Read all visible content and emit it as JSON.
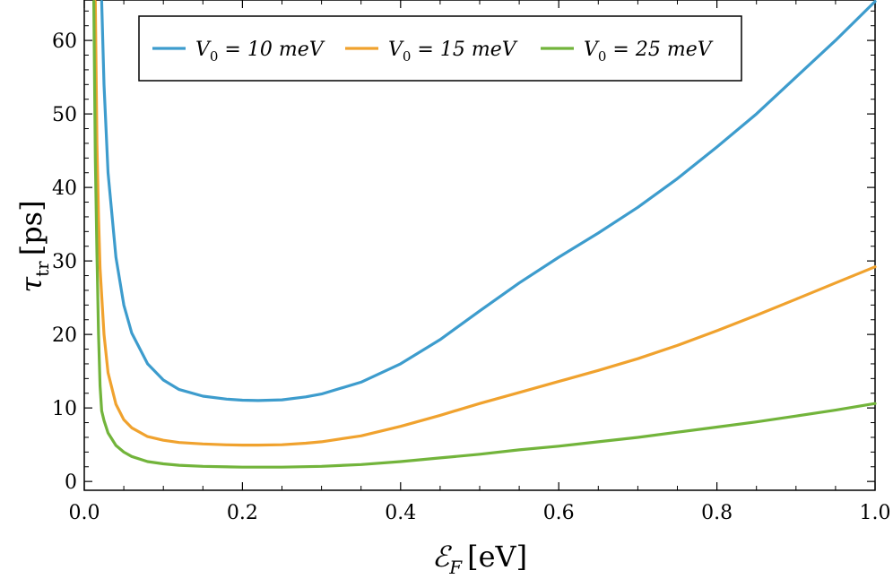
{
  "chart_data": {
    "type": "line",
    "xlabel": {
      "main": "ℰ",
      "sub": "F",
      "unit": "[eV]"
    },
    "ylabel": {
      "main": "τ",
      "sub": "tr",
      "unit": "[ps]"
    },
    "xlim": [
      0.0,
      1.0
    ],
    "ylim": [
      -1.2,
      65.5
    ],
    "xticks": [
      0.0,
      0.2,
      0.4,
      0.6,
      0.8,
      1.0
    ],
    "xtick_labels": [
      "0.0",
      "0.2",
      "0.4",
      "0.6",
      "0.8",
      "1.0"
    ],
    "yticks": [
      0,
      10,
      20,
      30,
      40,
      50,
      60
    ],
    "ytick_labels": [
      "0",
      "10",
      "20",
      "30",
      "40",
      "50",
      "60"
    ],
    "grid": false,
    "legend_position": "top-center",
    "series": [
      {
        "name": "V0 = 10 meV",
        "label_main": "V",
        "label_sub": "0",
        "label_rest": " = 10 meV",
        "color": "#3d9ccd",
        "x": [
          0.022,
          0.025,
          0.03,
          0.04,
          0.05,
          0.06,
          0.08,
          0.1,
          0.12,
          0.15,
          0.18,
          0.2,
          0.22,
          0.25,
          0.28,
          0.3,
          0.35,
          0.4,
          0.45,
          0.5,
          0.55,
          0.6,
          0.65,
          0.7,
          0.75,
          0.8,
          0.85,
          0.9,
          0.95,
          1.0
        ],
        "y": [
          65.3,
          54.0,
          42.0,
          30.5,
          24.0,
          20.2,
          16.0,
          13.8,
          12.5,
          11.6,
          11.2,
          11.05,
          11.0,
          11.1,
          11.5,
          11.9,
          13.5,
          16.0,
          19.3,
          23.2,
          27.0,
          30.5,
          33.8,
          37.3,
          41.2,
          45.5,
          50.0,
          55.0,
          60.0,
          65.3
        ]
      },
      {
        "name": "V0 = 15 meV",
        "label_main": "V",
        "label_sub": "0",
        "label_rest": " = 15 meV",
        "color": "#f0a22e",
        "x": [
          0.014,
          0.016,
          0.018,
          0.02,
          0.025,
          0.03,
          0.04,
          0.05,
          0.06,
          0.08,
          0.1,
          0.12,
          0.15,
          0.18,
          0.2,
          0.22,
          0.25,
          0.28,
          0.3,
          0.35,
          0.4,
          0.45,
          0.5,
          0.55,
          0.6,
          0.65,
          0.7,
          0.75,
          0.8,
          0.85,
          0.9,
          0.95,
          1.0
        ],
        "y": [
          65.3,
          46.0,
          36.0,
          29.0,
          20.0,
          14.8,
          10.5,
          8.4,
          7.3,
          6.1,
          5.6,
          5.3,
          5.1,
          4.98,
          4.95,
          4.95,
          5.0,
          5.2,
          5.4,
          6.2,
          7.5,
          9.0,
          10.6,
          12.1,
          13.6,
          15.1,
          16.7,
          18.5,
          20.5,
          22.6,
          24.8,
          27.0,
          29.2
        ]
      },
      {
        "name": "V0 = 25 meV",
        "label_main": "V",
        "label_sub": "0",
        "label_rest": " = 25 meV",
        "color": "#72b43b",
        "x": [
          0.012,
          0.014,
          0.016,
          0.018,
          0.02,
          0.022,
          0.025,
          0.03,
          0.04,
          0.05,
          0.06,
          0.08,
          0.1,
          0.12,
          0.15,
          0.2,
          0.25,
          0.3,
          0.35,
          0.4,
          0.45,
          0.5,
          0.55,
          0.6,
          0.65,
          0.7,
          0.75,
          0.8,
          0.85,
          0.9,
          0.95,
          1.0
        ],
        "y": [
          65.3,
          44.0,
          31.0,
          20.0,
          13.0,
          9.6,
          8.3,
          6.6,
          4.9,
          4.0,
          3.4,
          2.7,
          2.4,
          2.2,
          2.05,
          1.95,
          1.95,
          2.05,
          2.3,
          2.7,
          3.2,
          3.7,
          4.3,
          4.8,
          5.4,
          6.0,
          6.7,
          7.4,
          8.1,
          8.9,
          9.7,
          10.6
        ]
      }
    ]
  }
}
